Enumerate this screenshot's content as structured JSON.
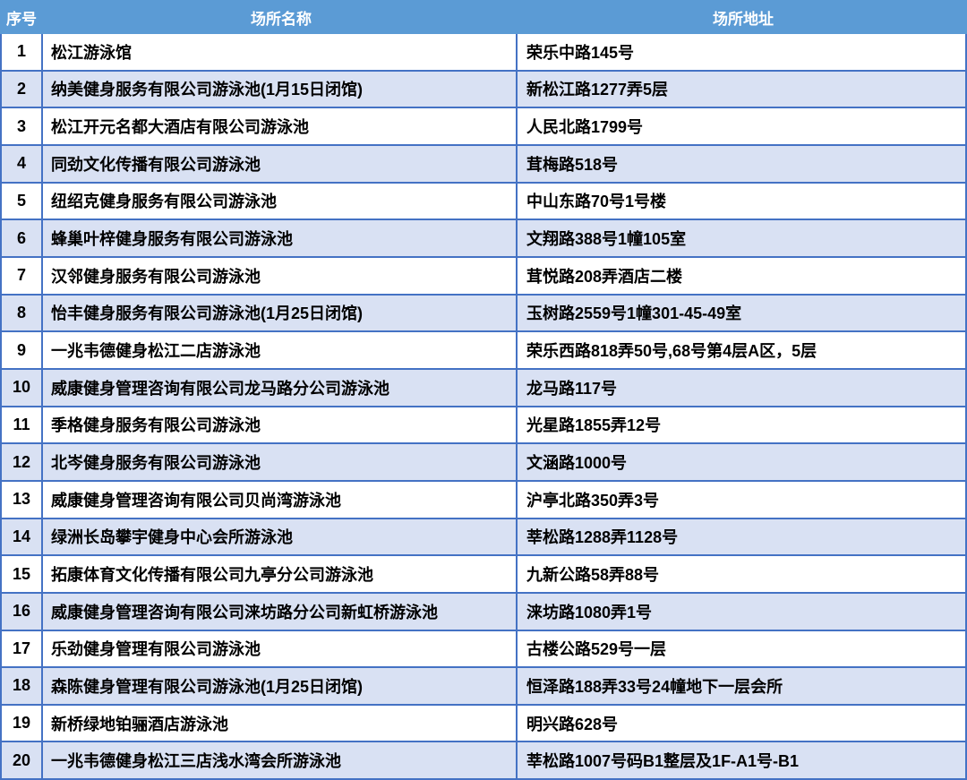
{
  "table": {
    "columns": [
      {
        "key": "no",
        "label": "序号"
      },
      {
        "key": "name",
        "label": "场所名称"
      },
      {
        "key": "address",
        "label": "场所地址"
      }
    ],
    "rows": [
      {
        "no": "1",
        "name": "松江游泳馆",
        "address": "荣乐中路145号"
      },
      {
        "no": "2",
        "name": "纳美健身服务有限公司游泳池(1月15日闭馆)",
        "address": "新松江路1277弄5层"
      },
      {
        "no": "3",
        "name": "松江开元名都大酒店有限公司游泳池",
        "address": "人民北路1799号"
      },
      {
        "no": "4",
        "name": "同劲文化传播有限公司游泳池",
        "address": "茸梅路518号"
      },
      {
        "no": "5",
        "name": "纽绍克健身服务有限公司游泳池",
        "address": "中山东路70号1号楼"
      },
      {
        "no": "6",
        "name": "蜂巢叶梓健身服务有限公司游泳池",
        "address": "文翔路388号1幢105室"
      },
      {
        "no": "7",
        "name": "汉邻健身服务有限公司游泳池",
        "address": "茸悦路208弄酒店二楼"
      },
      {
        "no": "8",
        "name": "怡丰健身服务有限公司游泳池(1月25日闭馆)",
        "address": "玉树路2559号1幢301-45-49室"
      },
      {
        "no": "9",
        "name": "一兆韦德健身松江二店游泳池",
        "address": "荣乐西路818弄50号,68号第4层A区，5层"
      },
      {
        "no": "10",
        "name": "威康健身管理咨询有限公司龙马路分公司游泳池",
        "address": "龙马路117号"
      },
      {
        "no": "11",
        "name": "季格健身服务有限公司游泳池",
        "address": "光星路1855弄12号"
      },
      {
        "no": "12",
        "name": "北岑健身服务有限公司游泳池",
        "address": "文涵路1000号"
      },
      {
        "no": "13",
        "name": "威康健身管理咨询有限公司贝尚湾游泳池",
        "address": "沪亭北路350弄3号"
      },
      {
        "no": "14",
        "name": "绿洲长岛攀宇健身中心会所游泳池",
        "address": "莘松路1288弄1128号"
      },
      {
        "no": "15",
        "name": "拓康体育文化传播有限公司九亭分公司游泳池",
        "address": "九新公路58弄88号"
      },
      {
        "no": "16",
        "name": "威康健身管理咨询有限公司涞坊路分公司新虹桥游泳池",
        "address": "涞坊路1080弄1号"
      },
      {
        "no": "17",
        "name": "乐劲健身管理有限公司游泳池",
        "address": "古楼公路529号一层"
      },
      {
        "no": "18",
        "name": "森陈健身管理有限公司游泳池(1月25日闭馆)",
        "address": "恒泽路188弄33号24幢地下一层会所"
      },
      {
        "no": "19",
        "name": "新桥绿地铂骊酒店游泳池",
        "address": "明兴路628号"
      },
      {
        "no": "20",
        "name": "一兆韦德健身松江三店浅水湾会所游泳池",
        "address": "莘松路1007号码B1整层及1F-A1号-B1"
      }
    ]
  },
  "colors": {
    "header_bg": "#5B9BD5",
    "header_text": "#FFFFFF",
    "alt_row_bg": "#D9E1F3",
    "border": "#4472C4",
    "body_text": "#000000"
  }
}
